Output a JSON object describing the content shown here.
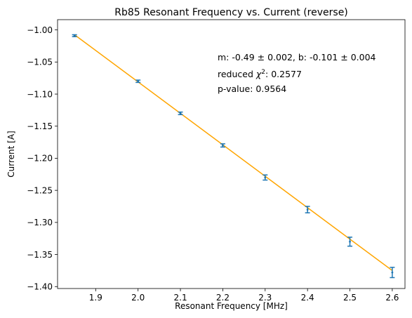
{
  "chart_data": {
    "type": "scatter",
    "title": "Rb85 Resonant Frequency vs. Current (reverse)",
    "xlabel": "Resonant Frequency [MHz]",
    "ylabel": "Current [A]",
    "xlim": [
      1.81,
      2.63
    ],
    "ylim": [
      -1.403,
      -0.984
    ],
    "xticks": [
      1.9,
      2.0,
      2.1,
      2.2,
      2.3,
      2.4,
      2.5,
      2.6
    ],
    "xtick_labels": [
      "1.9",
      "2.0",
      "2.1",
      "2.2",
      "2.3",
      "2.4",
      "2.5",
      "2.6"
    ],
    "yticks": [
      -1.0,
      -1.05,
      -1.1,
      -1.15,
      -1.2,
      -1.25,
      -1.3,
      -1.35,
      -1.4
    ],
    "ytick_labels": [
      "−1.00",
      "−1.05",
      "−1.10",
      "−1.15",
      "−1.20",
      "−1.25",
      "−1.30",
      "−1.35",
      "−1.40"
    ],
    "grid": false,
    "series": [
      {
        "x": [
          1.85,
          2.0,
          2.1,
          2.2,
          2.3,
          2.4,
          2.5,
          2.6
        ],
        "y": [
          -1.009,
          -1.08,
          -1.13,
          -1.18,
          -1.23,
          -1.28,
          -1.33,
          -1.378
        ],
        "yerr": [
          0.0015,
          0.0018,
          0.002,
          0.0025,
          0.004,
          0.005,
          0.007,
          0.008
        ],
        "color": "#1f77b4"
      }
    ],
    "fit": {
      "x": [
        1.85,
        2.6
      ],
      "y": [
        -1.0075,
        -1.375
      ],
      "color": "#ffa500"
    },
    "annotation": {
      "line1": "m: -0.49 ± 0.002, b: -0.101 ± 0.004",
      "line2_prefix": "reduced ",
      "line2_chi": "χ",
      "line2_sup": "2",
      "line2_suffix": ": 0.2577",
      "line3": "p-value: 0.9564"
    }
  }
}
